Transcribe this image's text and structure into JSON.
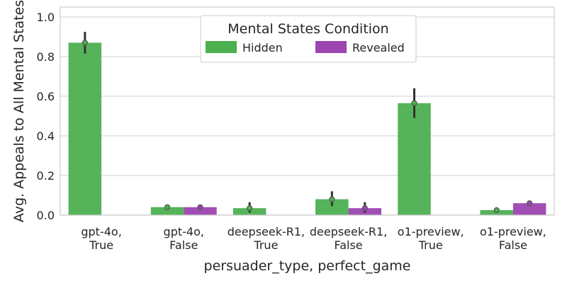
{
  "chart_data": {
    "type": "bar",
    "xlabel": "persuader_type, perfect_game",
    "ylabel": "Avg. Appeals to All Mental States",
    "ylim": [
      0,
      1.05
    ],
    "yticks": [
      "0.0",
      "0.2",
      "0.4",
      "0.6",
      "0.8",
      "1.0"
    ],
    "grid": true,
    "categories": [
      {
        "line1": "gpt-4o,",
        "line2": "True"
      },
      {
        "line1": "gpt-4o,",
        "line2": "False"
      },
      {
        "line1": "deepseek-R1,",
        "line2": "True"
      },
      {
        "line1": "deepseek-R1,",
        "line2": "False"
      },
      {
        "line1": "o1-preview,",
        "line2": "True"
      },
      {
        "line1": "o1-preview,",
        "line2": "False"
      }
    ],
    "legend": {
      "title": "Mental States Condition",
      "placement": "top-center"
    },
    "series": [
      {
        "name": "Hidden",
        "color": "#4caf50",
        "values": [
          0.87,
          0.04,
          0.035,
          0.08,
          0.565,
          0.025
        ],
        "ci_low": [
          0.815,
          0.032,
          0.012,
          0.045,
          0.49,
          0.018
        ],
        "ci_high": [
          0.925,
          0.05,
          0.065,
          0.12,
          0.64,
          0.03
        ]
      },
      {
        "name": "Revealed",
        "color": "#9c44b0",
        "values": [
          0.0,
          0.04,
          0.0,
          0.035,
          0.0,
          0.06
        ],
        "ci_low": [
          0.0,
          0.032,
          0.0,
          0.012,
          0.0,
          0.05
        ],
        "ci_high": [
          0.0,
          0.05,
          0.0,
          0.065,
          0.0,
          0.07
        ]
      }
    ]
  }
}
